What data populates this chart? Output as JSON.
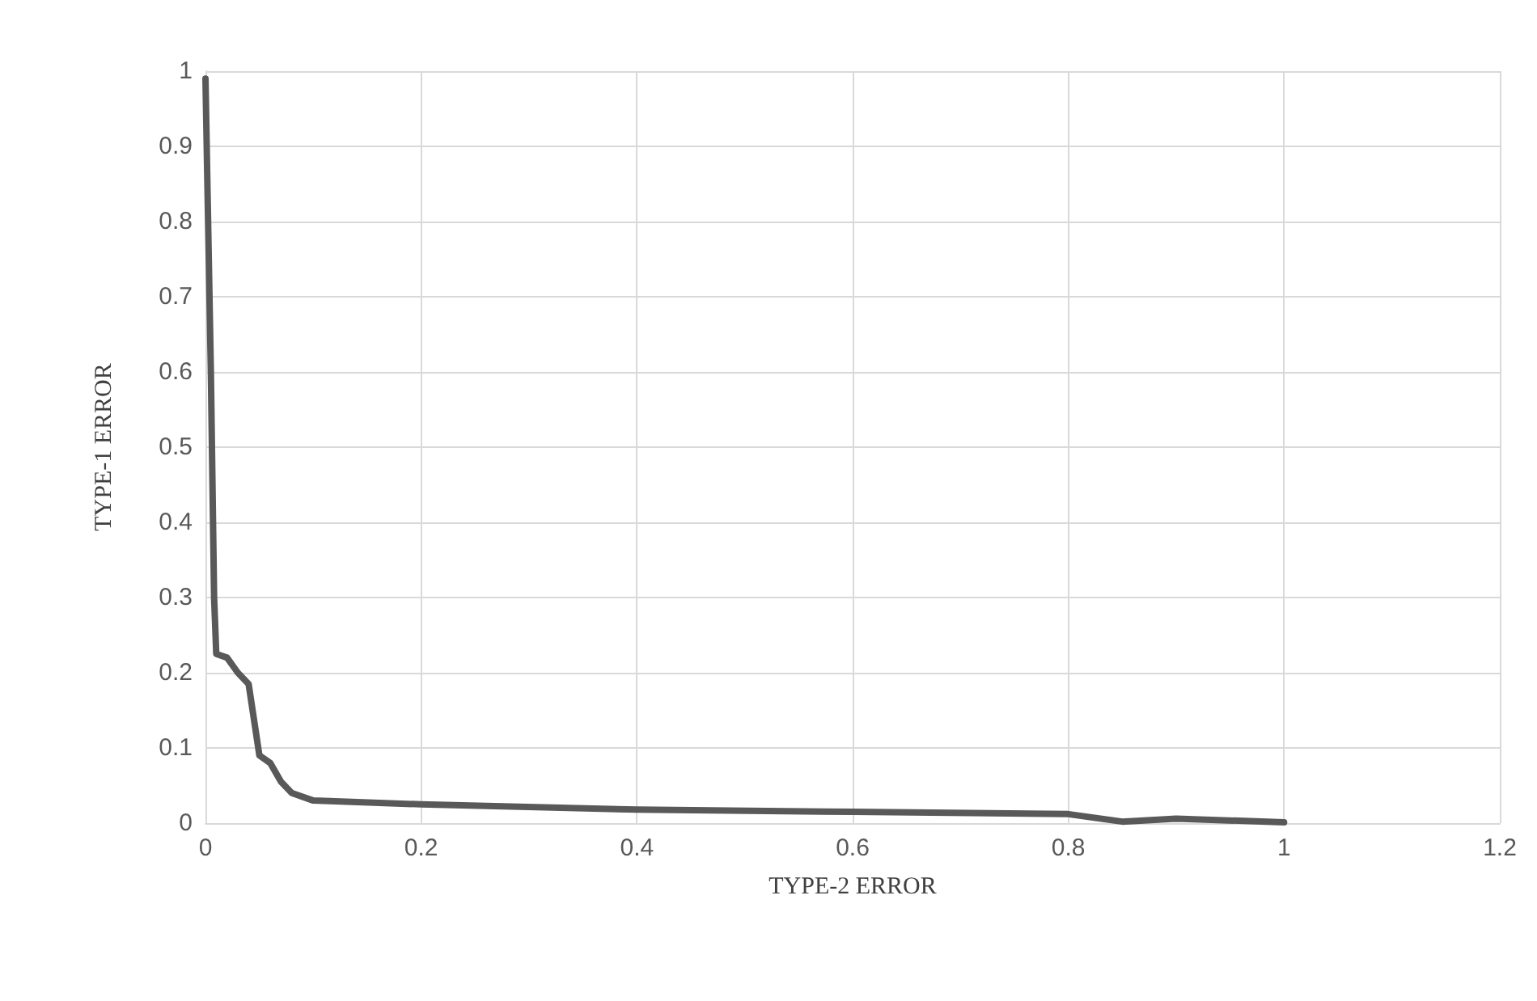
{
  "chart_data": {
    "type": "line",
    "xlabel": "TYPE-2 ERROR",
    "ylabel": "TYPE-1 ERROR",
    "xlim": [
      0,
      1.2
    ],
    "xticks": [
      0,
      0.2,
      0.4,
      0.6,
      0.8,
      1,
      1.2
    ],
    "ylim": [
      0,
      1
    ],
    "yticks": [
      0,
      0.1,
      0.2,
      0.3,
      0.4,
      0.5,
      0.6,
      0.7,
      0.8,
      0.9,
      1
    ],
    "grid": true,
    "marker": "none",
    "line_style": "solid",
    "x": [
      0,
      0.005,
      0.008,
      0.01,
      0.02,
      0.03,
      0.04,
      0.05,
      0.06,
      0.07,
      0.08,
      0.1,
      0.2,
      0.4,
      0.6,
      0.8,
      0.85,
      0.9,
      1
    ],
    "series": [
      {
        "color": "#595959",
        "values": [
          0.99,
          0.6,
          0.3,
          0.225,
          0.22,
          0.2,
          0.185,
          0.09,
          0.08,
          0.055,
          0.04,
          0.03,
          0.025,
          0.018,
          0.015,
          0.012,
          0.002,
          0.006,
          0.001
        ]
      }
    ]
  }
}
